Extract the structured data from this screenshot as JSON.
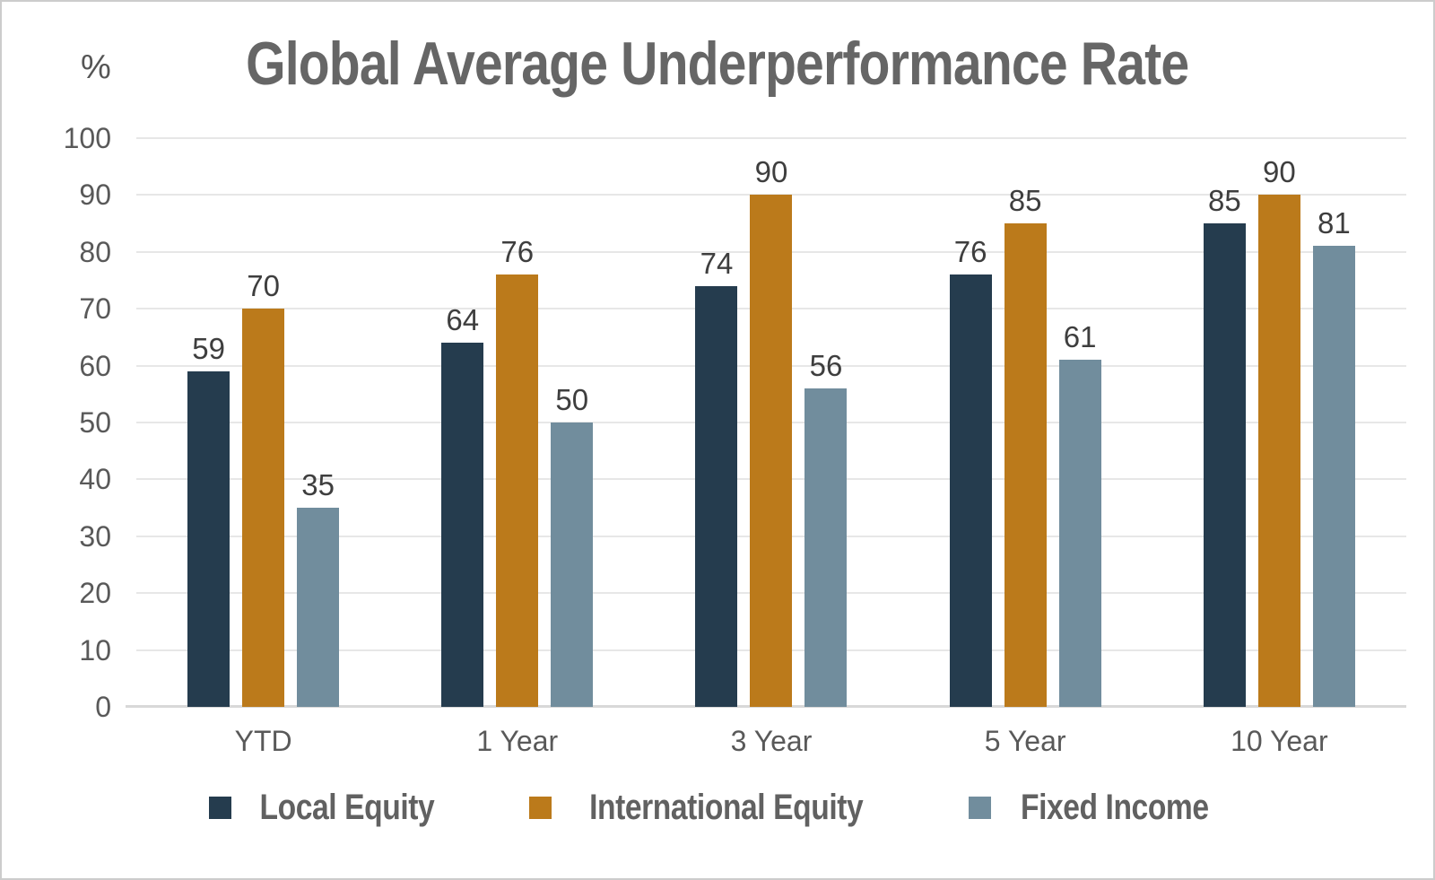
{
  "chart_data": {
    "type": "bar",
    "title": "Global Average Underperformance Rate",
    "unit_label": "%",
    "categories": [
      "YTD",
      "1 Year",
      "3 Year",
      "5 Year",
      "10 Year"
    ],
    "series": [
      {
        "name": "Local Equity",
        "color": "#253c4e",
        "values": [
          59,
          64,
          74,
          76,
          85
        ]
      },
      {
        "name": "International Equity",
        "color": "#bb7a1b",
        "values": [
          70,
          76,
          90,
          85,
          90
        ]
      },
      {
        "name": "Fixed Income",
        "color": "#718d9d",
        "values": [
          35,
          50,
          56,
          61,
          81
        ]
      }
    ],
    "xlabel": "",
    "ylabel": "%",
    "ylim": [
      0,
      100
    ],
    "yticks": [
      0,
      10,
      20,
      30,
      40,
      50,
      60,
      70,
      80,
      90,
      100
    ],
    "grid": true,
    "legend_position": "bottom",
    "value_labels": true
  },
  "colors": {
    "background": "#ffffff",
    "border": "#cccccc",
    "gridline": "#e7e7e7",
    "baseline": "#d8d8d8",
    "title_text": "#666666",
    "tick_text": "#595959",
    "value_text": "#3e3e3e",
    "legend_text": "#616161"
  }
}
